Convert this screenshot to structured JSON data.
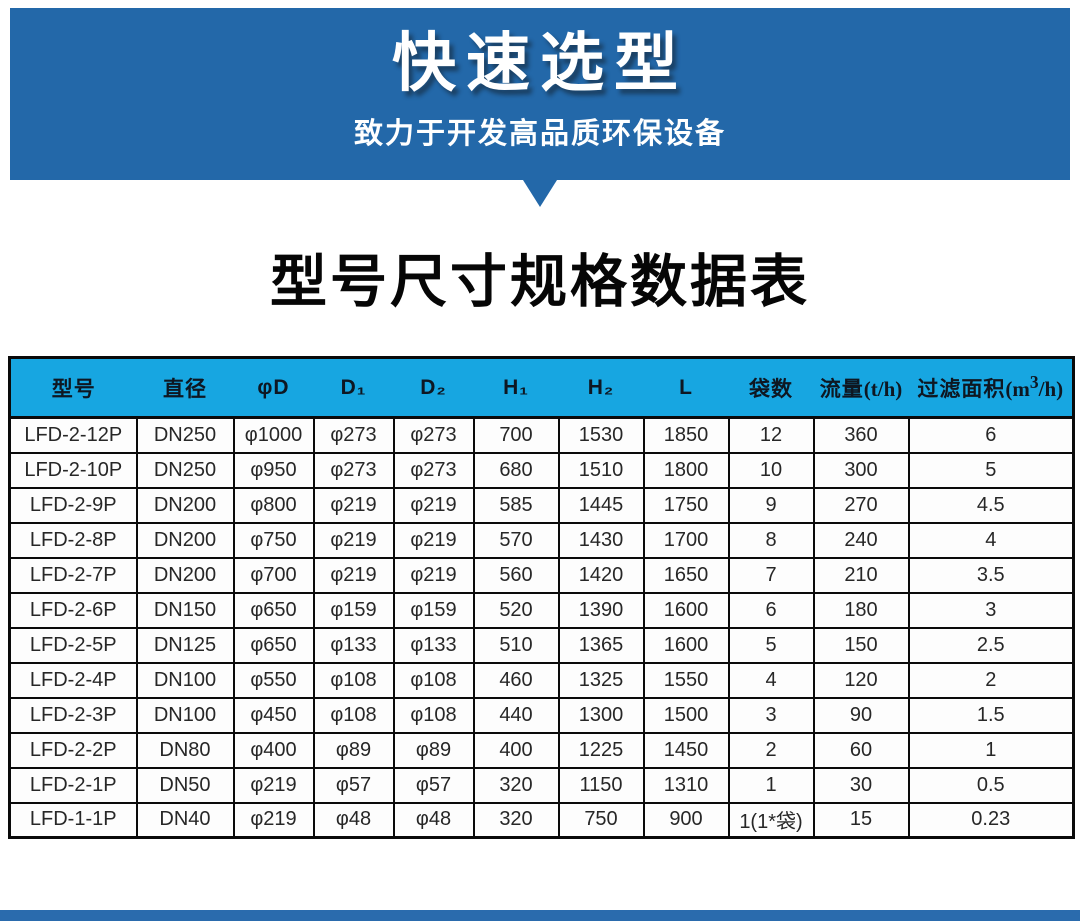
{
  "banner": {
    "title": "快速选型",
    "subtitle": "致力于开发高品质环保设备"
  },
  "section": {
    "title": "型号尺寸规格数据表"
  },
  "colors": {
    "banner_blue": "#2368a9",
    "header_cyan": "#17a6e1",
    "footer_blue": "#2a6bad",
    "table_border": "#0a0a0a"
  },
  "chart_data": {
    "type": "table",
    "title": "型号尺寸规格数据表",
    "columns": [
      "型号",
      "直径",
      "φD",
      "D₁",
      "D₂",
      "H₁",
      "H₂",
      "L",
      "袋数",
      "流量(t/h)",
      "过滤面积(m³/h)"
    ],
    "rows": [
      [
        "LFD-2-12P",
        "DN250",
        "φ1000",
        "φ273",
        "φ273",
        "700",
        "1530",
        "1850",
        "12",
        "360",
        "6"
      ],
      [
        "LFD-2-10P",
        "DN250",
        "φ950",
        "φ273",
        "φ273",
        "680",
        "1510",
        "1800",
        "10",
        "300",
        "5"
      ],
      [
        "LFD-2-9P",
        "DN200",
        "φ800",
        "φ219",
        "φ219",
        "585",
        "1445",
        "1750",
        "9",
        "270",
        "4.5"
      ],
      [
        "LFD-2-8P",
        "DN200",
        "φ750",
        "φ219",
        "φ219",
        "570",
        "1430",
        "1700",
        "8",
        "240",
        "4"
      ],
      [
        "LFD-2-7P",
        "DN200",
        "φ700",
        "φ219",
        "φ219",
        "560",
        "1420",
        "1650",
        "7",
        "210",
        "3.5"
      ],
      [
        "LFD-2-6P",
        "DN150",
        "φ650",
        "φ159",
        "φ159",
        "520",
        "1390",
        "1600",
        "6",
        "180",
        "3"
      ],
      [
        "LFD-2-5P",
        "DN125",
        "φ650",
        "φ133",
        "φ133",
        "510",
        "1365",
        "1600",
        "5",
        "150",
        "2.5"
      ],
      [
        "LFD-2-4P",
        "DN100",
        "φ550",
        "φ108",
        "φ108",
        "460",
        "1325",
        "1550",
        "4",
        "120",
        "2"
      ],
      [
        "LFD-2-3P",
        "DN100",
        "φ450",
        "φ108",
        "φ108",
        "440",
        "1300",
        "1500",
        "3",
        "90",
        "1.5"
      ],
      [
        "LFD-2-2P",
        "DN80",
        "φ400",
        "φ89",
        "φ89",
        "400",
        "1225",
        "1450",
        "2",
        "60",
        "1"
      ],
      [
        "LFD-2-1P",
        "DN50",
        "φ219",
        "φ57",
        "φ57",
        "320",
        "1150",
        "1310",
        "1",
        "30",
        "0.5"
      ],
      [
        "LFD-1-1P",
        "DN40",
        "φ219",
        "φ48",
        "φ48",
        "320",
        "750",
        "900",
        "1(1*袋)",
        "15",
        "0.23"
      ]
    ]
  }
}
